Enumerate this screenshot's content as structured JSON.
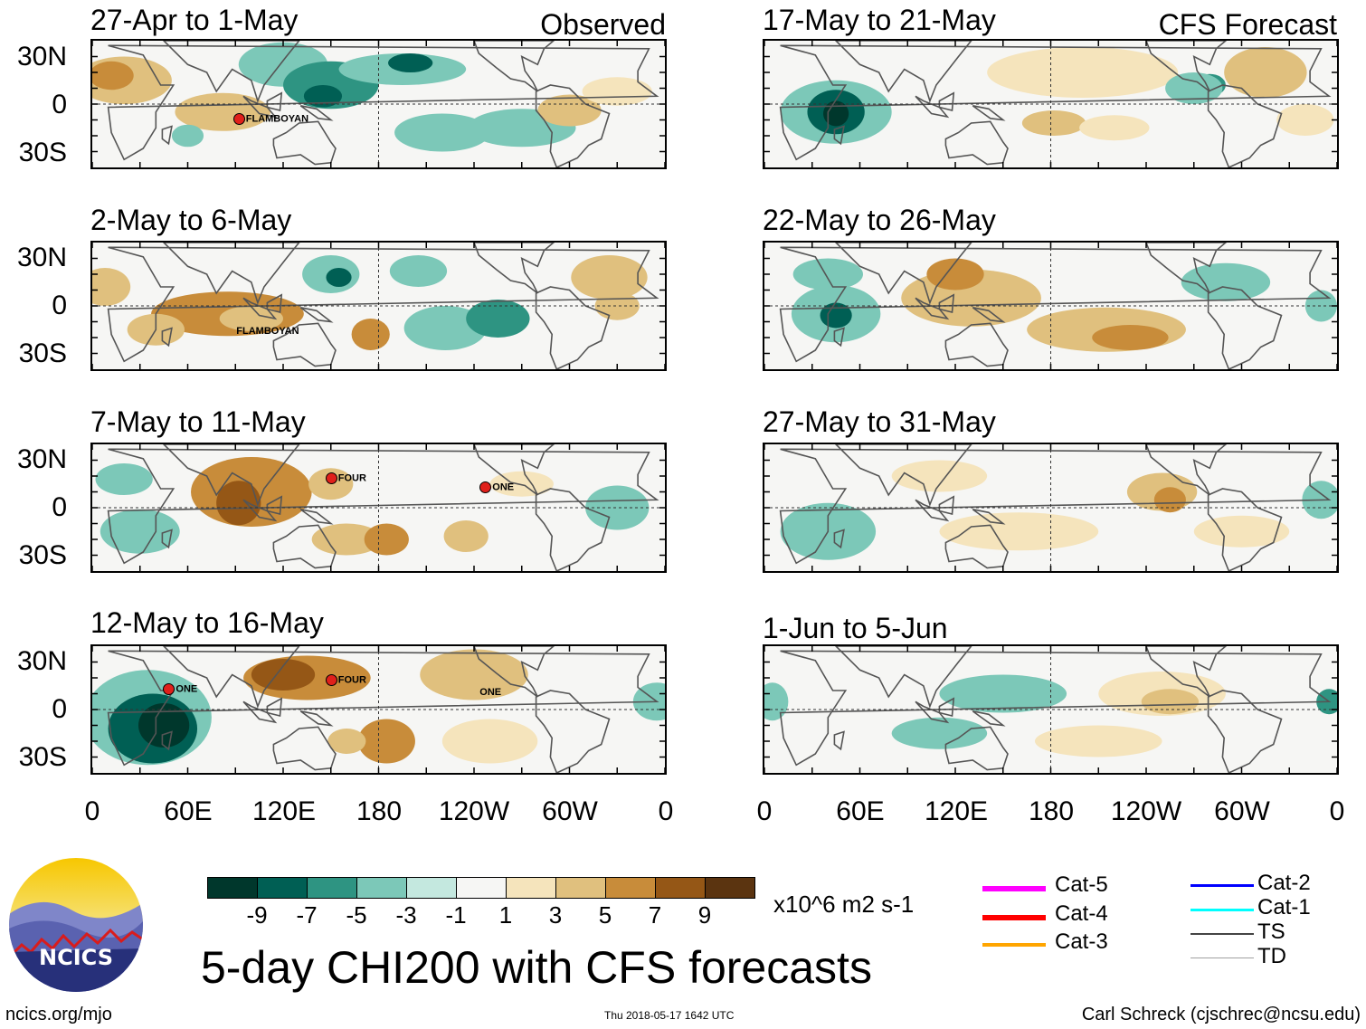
{
  "headers": {
    "observed": "Observed",
    "forecast": "CFS Forecast"
  },
  "lat_labels": [
    "30N",
    "0",
    "30S"
  ],
  "lon_labels": [
    "0",
    "60E",
    "120E",
    "180",
    "120W",
    "60W",
    "0"
  ],
  "panels": [
    {
      "title": "27-Apr to 1-May",
      "group": "observed",
      "storms": [
        {
          "name": "FLAMBOYAN",
          "lon": 92,
          "lat": -10,
          "marker": true
        }
      ]
    },
    {
      "title": "2-May to 6-May",
      "group": "observed",
      "storms": [
        {
          "name": "FLAMBOYAN",
          "lon": 94,
          "lat": -17,
          "marker": false
        }
      ]
    },
    {
      "title": "7-May to 11-May",
      "group": "observed",
      "storms": [
        {
          "name": "FOUR",
          "lon": 150,
          "lat": 18,
          "marker": true
        },
        {
          "name": "ONE",
          "lon": -113,
          "lat": 12,
          "marker": true
        }
      ]
    },
    {
      "title": "12-May to 16-May",
      "group": "observed",
      "storms": [
        {
          "name": "ONE",
          "lon": 48,
          "lat": 12,
          "marker": true
        },
        {
          "name": "FOUR",
          "lon": 150,
          "lat": 18,
          "marker": true
        },
        {
          "name": "ONE",
          "lon": -113,
          "lat": 10,
          "marker": false
        }
      ]
    },
    {
      "title": "17-May to 21-May",
      "group": "forecast",
      "storms": []
    },
    {
      "title": "22-May to 26-May",
      "group": "forecast",
      "storms": []
    },
    {
      "title": "27-May to 31-May",
      "group": "forecast",
      "storms": []
    },
    {
      "title": "1-Jun to 5-Jun",
      "group": "forecast",
      "storms": []
    }
  ],
  "colorbar": {
    "colors": [
      "#00372c",
      "#005f54",
      "#2e9482",
      "#7cc8b8",
      "#c4e8df",
      "#f6f6f4",
      "#f5e4bc",
      "#e0c07e",
      "#c88c3a",
      "#955716",
      "#5b3410"
    ],
    "ticks": [
      "-9",
      "-7",
      "-5",
      "-3",
      "-1",
      "1",
      "3",
      "5",
      "7",
      "9"
    ],
    "units": "x10^6 m2 s-1"
  },
  "legend": [
    {
      "label": "Cat-5",
      "color": "#ff00ff"
    },
    {
      "label": "Cat-4",
      "color": "#ff0000"
    },
    {
      "label": "Cat-3",
      "color": "#ffa500"
    },
    {
      "label": "Cat-2",
      "color": "#0000ff"
    },
    {
      "label": "Cat-1",
      "color": "#00ffff"
    },
    {
      "label": "TS",
      "color": "#444444"
    },
    {
      "label": "TD",
      "color": "#a0a0a0"
    }
  ],
  "title": "5-day CHI200 with CFS forecasts",
  "logo_text": "NCICS",
  "footer": {
    "left": "ncics.org/mjo",
    "center": "Thu 2018-05-17 1642 UTC",
    "right": "Carl Schreck (cjschrec@ncsu.edu)"
  }
}
